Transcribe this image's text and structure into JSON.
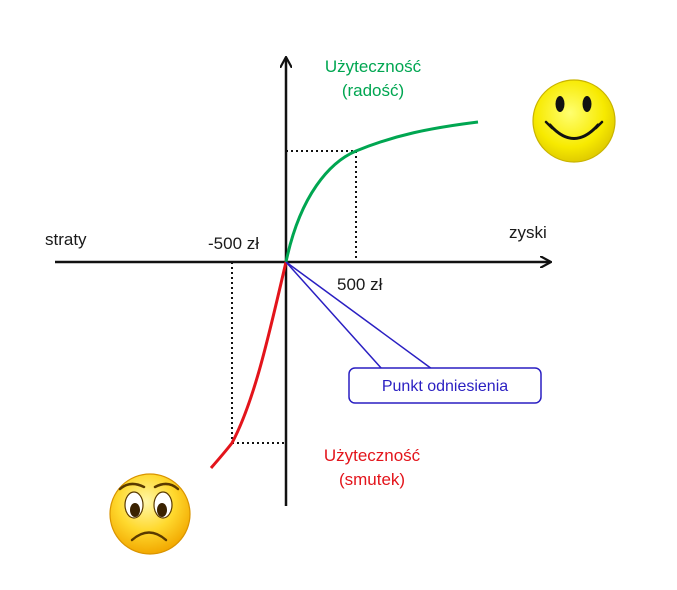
{
  "labels": {
    "losses": "straty",
    "gains": "zyski",
    "neg_500": "-500 zł",
    "pos_500": "500 zł",
    "gain_utility_line1": "Użyteczność",
    "gain_utility_line2": "(radość)",
    "loss_utility_line1": "Użyteczność",
    "loss_utility_line2": "(smutek)",
    "reference_point": "Punkt odniesienia"
  },
  "icons": {
    "happy": "happy-face-icon",
    "sad": "sad-face-icon"
  },
  "colors": {
    "gain_curve": "#00a651",
    "loss_curve": "#e3141b",
    "axes": "#111111",
    "callout": "#2a1fc2",
    "face_fill": "#f5e50a"
  }
}
